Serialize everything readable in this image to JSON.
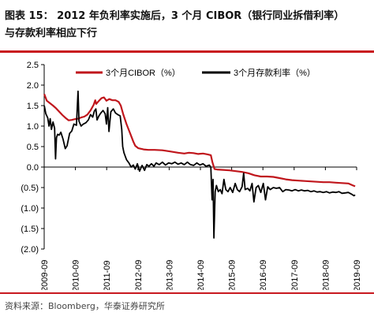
{
  "header": {
    "title_line1": "图表 15：  2012 年负利率实施后，3 个月 CIBOR（银行同业拆借利率）",
    "title_line2": "与存款利率相应下行"
  },
  "footer": {
    "source": "资料来源：Bloomberg，华泰证券研究所"
  },
  "colors": {
    "rule": "#c8191f",
    "cibor": "#c0161c",
    "deposit": "#000000"
  },
  "chart_data": {
    "type": "line",
    "title": "",
    "xlabel": "",
    "ylabel": "",
    "ylim": [
      -2.0,
      2.5
    ],
    "y_ticks": [
      2.5,
      2.0,
      1.5,
      1.0,
      0.5,
      0.0,
      -0.5,
      -1.0,
      -1.5,
      -2.0
    ],
    "y_tick_labels": [
      "2.5",
      "2.0",
      "1.5",
      "1.0",
      "0.5",
      "0.0",
      "(0.5)",
      "(1.0)",
      "(1.5)",
      "(2.0)"
    ],
    "xlim": [
      2009.667,
      2019.667
    ],
    "x_ticks": [
      2009.667,
      2010.667,
      2011.667,
      2012.667,
      2013.667,
      2014.667,
      2015.667,
      2016.667,
      2017.667,
      2018.667,
      2019.667
    ],
    "x_tick_labels": [
      "2009-09",
      "2010-09",
      "2011-09",
      "2012-09",
      "2013-09",
      "2014-09",
      "2015-09",
      "2016-09",
      "2017-09",
      "2018-09",
      "2019-09"
    ],
    "grid": false,
    "legend_position": "top",
    "series": [
      {
        "name": "3个月CIBOR（%）",
        "color": "#c0161c",
        "points": [
          [
            2009.67,
            1.78
          ],
          [
            2009.75,
            1.62
          ],
          [
            2009.85,
            1.56
          ],
          [
            2009.95,
            1.5
          ],
          [
            2010.05,
            1.43
          ],
          [
            2010.15,
            1.35
          ],
          [
            2010.25,
            1.27
          ],
          [
            2010.35,
            1.2
          ],
          [
            2010.45,
            1.14
          ],
          [
            2010.55,
            1.15
          ],
          [
            2010.65,
            1.17
          ],
          [
            2010.75,
            1.18
          ],
          [
            2010.85,
            1.21
          ],
          [
            2010.95,
            1.23
          ],
          [
            2011.05,
            1.28
          ],
          [
            2011.15,
            1.38
          ],
          [
            2011.25,
            1.52
          ],
          [
            2011.3,
            1.63
          ],
          [
            2011.33,
            1.54
          ],
          [
            2011.4,
            1.6
          ],
          [
            2011.5,
            1.68
          ],
          [
            2011.58,
            1.7
          ],
          [
            2011.66,
            1.62
          ],
          [
            2011.75,
            1.66
          ],
          [
            2011.85,
            1.63
          ],
          [
            2011.95,
            1.63
          ],
          [
            2012.05,
            1.59
          ],
          [
            2012.12,
            1.5
          ],
          [
            2012.2,
            1.28
          ],
          [
            2012.3,
            1.05
          ],
          [
            2012.42,
            0.82
          ],
          [
            2012.52,
            0.62
          ],
          [
            2012.58,
            0.52
          ],
          [
            2012.68,
            0.46
          ],
          [
            2012.85,
            0.43
          ],
          [
            2013.0,
            0.42
          ],
          [
            2013.2,
            0.42
          ],
          [
            2013.45,
            0.41
          ],
          [
            2013.7,
            0.38
          ],
          [
            2013.95,
            0.35
          ],
          [
            2014.15,
            0.33
          ],
          [
            2014.3,
            0.35
          ],
          [
            2014.45,
            0.34
          ],
          [
            2014.6,
            0.32
          ],
          [
            2014.75,
            0.33
          ],
          [
            2014.9,
            0.31
          ],
          [
            2015.0,
            0.29
          ],
          [
            2015.05,
            0.12
          ],
          [
            2015.12,
            -0.05
          ],
          [
            2015.2,
            -0.06
          ],
          [
            2015.4,
            -0.07
          ],
          [
            2015.6,
            -0.08
          ],
          [
            2015.8,
            -0.1
          ],
          [
            2016.0,
            -0.12
          ],
          [
            2016.2,
            -0.15
          ],
          [
            2016.4,
            -0.2
          ],
          [
            2016.6,
            -0.23
          ],
          [
            2016.8,
            -0.23
          ],
          [
            2017.0,
            -0.24
          ],
          [
            2017.2,
            -0.27
          ],
          [
            2017.4,
            -0.3
          ],
          [
            2017.6,
            -0.32
          ],
          [
            2017.8,
            -0.33
          ],
          [
            2018.0,
            -0.34
          ],
          [
            2018.2,
            -0.35
          ],
          [
            2018.4,
            -0.36
          ],
          [
            2018.6,
            -0.37
          ],
          [
            2018.8,
            -0.37
          ],
          [
            2019.0,
            -0.38
          ],
          [
            2019.2,
            -0.39
          ],
          [
            2019.4,
            -0.4
          ],
          [
            2019.55,
            -0.45
          ],
          [
            2019.62,
            -0.47
          ]
        ]
      },
      {
        "name": "3个月存款利率（%）",
        "color": "#000000",
        "points": [
          [
            2009.67,
            1.5
          ],
          [
            2009.72,
            1.3
          ],
          [
            2009.78,
            1.2
          ],
          [
            2009.82,
            1.0
          ],
          [
            2009.86,
            1.18
          ],
          [
            2009.9,
            0.92
          ],
          [
            2009.95,
            1.1
          ],
          [
            2010.0,
            0.95
          ],
          [
            2010.03,
            0.2
          ],
          [
            2010.06,
            0.72
          ],
          [
            2010.1,
            0.8
          ],
          [
            2010.15,
            0.78
          ],
          [
            2010.2,
            0.85
          ],
          [
            2010.27,
            0.68
          ],
          [
            2010.34,
            0.45
          ],
          [
            2010.4,
            0.52
          ],
          [
            2010.48,
            0.82
          ],
          [
            2010.55,
            0.88
          ],
          [
            2010.62,
            1.05
          ],
          [
            2010.7,
            1.02
          ],
          [
            2010.75,
            1.85
          ],
          [
            2010.78,
            1.12
          ],
          [
            2010.85,
            1.0
          ],
          [
            2010.92,
            1.05
          ],
          [
            2011.0,
            1.08
          ],
          [
            2011.08,
            1.15
          ],
          [
            2011.15,
            1.28
          ],
          [
            2011.22,
            1.22
          ],
          [
            2011.27,
            1.36
          ],
          [
            2011.32,
            1.42
          ],
          [
            2011.36,
            1.15
          ],
          [
            2011.42,
            1.25
          ],
          [
            2011.48,
            1.32
          ],
          [
            2011.55,
            1.38
          ],
          [
            2011.62,
            1.3
          ],
          [
            2011.66,
            1.05
          ],
          [
            2011.7,
            1.45
          ],
          [
            2011.74,
            0.87
          ],
          [
            2011.8,
            1.35
          ],
          [
            2011.88,
            1.42
          ],
          [
            2011.95,
            1.32
          ],
          [
            2012.02,
            1.28
          ],
          [
            2012.1,
            1.25
          ],
          [
            2012.15,
            0.92
          ],
          [
            2012.18,
            0.5
          ],
          [
            2012.22,
            0.35
          ],
          [
            2012.3,
            0.18
          ],
          [
            2012.38,
            0.1
          ],
          [
            2012.45,
            0.0
          ],
          [
            2012.52,
            0.05
          ],
          [
            2012.58,
            -0.05
          ],
          [
            2012.65,
            0.08
          ],
          [
            2012.72,
            -0.1
          ],
          [
            2012.8,
            0.04
          ],
          [
            2012.88,
            -0.08
          ],
          [
            2012.95,
            0.06
          ],
          [
            2013.02,
            0.02
          ],
          [
            2013.1,
            0.08
          ],
          [
            2013.18,
            0.02
          ],
          [
            2013.25,
            0.1
          ],
          [
            2013.35,
            0.06
          ],
          [
            2013.45,
            0.12
          ],
          [
            2013.55,
            0.05
          ],
          [
            2013.65,
            0.1
          ],
          [
            2013.75,
            0.08
          ],
          [
            2013.85,
            0.12
          ],
          [
            2013.95,
            0.07
          ],
          [
            2014.05,
            0.1
          ],
          [
            2014.15,
            0.06
          ],
          [
            2014.25,
            0.12
          ],
          [
            2014.35,
            0.06
          ],
          [
            2014.45,
            0.04
          ],
          [
            2014.55,
            0.1
          ],
          [
            2014.65,
            0.05
          ],
          [
            2014.75,
            0.08
          ],
          [
            2014.85,
            0.02
          ],
          [
            2014.95,
            0.05
          ],
          [
            2015.0,
            0.0
          ],
          [
            2015.04,
            -0.8
          ],
          [
            2015.07,
            -0.3
          ],
          [
            2015.1,
            -1.73
          ],
          [
            2015.14,
            -0.6
          ],
          [
            2015.18,
            -0.45
          ],
          [
            2015.24,
            -0.6
          ],
          [
            2015.3,
            -0.55
          ],
          [
            2015.36,
            -0.65
          ],
          [
            2015.42,
            -0.3
          ],
          [
            2015.48,
            -0.55
          ],
          [
            2015.55,
            -0.6
          ],
          [
            2015.62,
            -0.5
          ],
          [
            2015.7,
            -0.62
          ],
          [
            2015.78,
            -0.4
          ],
          [
            2015.85,
            -0.55
          ],
          [
            2015.92,
            -0.6
          ],
          [
            2016.0,
            -0.48
          ],
          [
            2016.05,
            -0.15
          ],
          [
            2016.1,
            -0.55
          ],
          [
            2016.18,
            -0.52
          ],
          [
            2016.25,
            -0.58
          ],
          [
            2016.32,
            -0.4
          ],
          [
            2016.38,
            -0.85
          ],
          [
            2016.45,
            -0.5
          ],
          [
            2016.52,
            -0.45
          ],
          [
            2016.6,
            -0.62
          ],
          [
            2016.68,
            -0.4
          ],
          [
            2016.75,
            -0.8
          ],
          [
            2016.82,
            -0.48
          ],
          [
            2016.9,
            -0.55
          ],
          [
            2017.0,
            -0.5
          ],
          [
            2017.1,
            -0.52
          ],
          [
            2017.2,
            -0.5
          ],
          [
            2017.3,
            -0.6
          ],
          [
            2017.4,
            -0.55
          ],
          [
            2017.5,
            -0.56
          ],
          [
            2017.6,
            -0.58
          ],
          [
            2017.7,
            -0.55
          ],
          [
            2017.8,
            -0.58
          ],
          [
            2017.9,
            -0.56
          ],
          [
            2018.0,
            -0.58
          ],
          [
            2018.1,
            -0.57
          ],
          [
            2018.2,
            -0.6
          ],
          [
            2018.3,
            -0.58
          ],
          [
            2018.4,
            -0.61
          ],
          [
            2018.5,
            -0.6
          ],
          [
            2018.6,
            -0.62
          ],
          [
            2018.7,
            -0.6
          ],
          [
            2018.8,
            -0.63
          ],
          [
            2018.9,
            -0.61
          ],
          [
            2019.0,
            -0.62
          ],
          [
            2019.1,
            -0.6
          ],
          [
            2019.2,
            -0.64
          ],
          [
            2019.3,
            -0.63
          ],
          [
            2019.4,
            -0.62
          ],
          [
            2019.5,
            -0.66
          ],
          [
            2019.58,
            -0.7
          ],
          [
            2019.62,
            -0.68
          ]
        ]
      }
    ]
  }
}
